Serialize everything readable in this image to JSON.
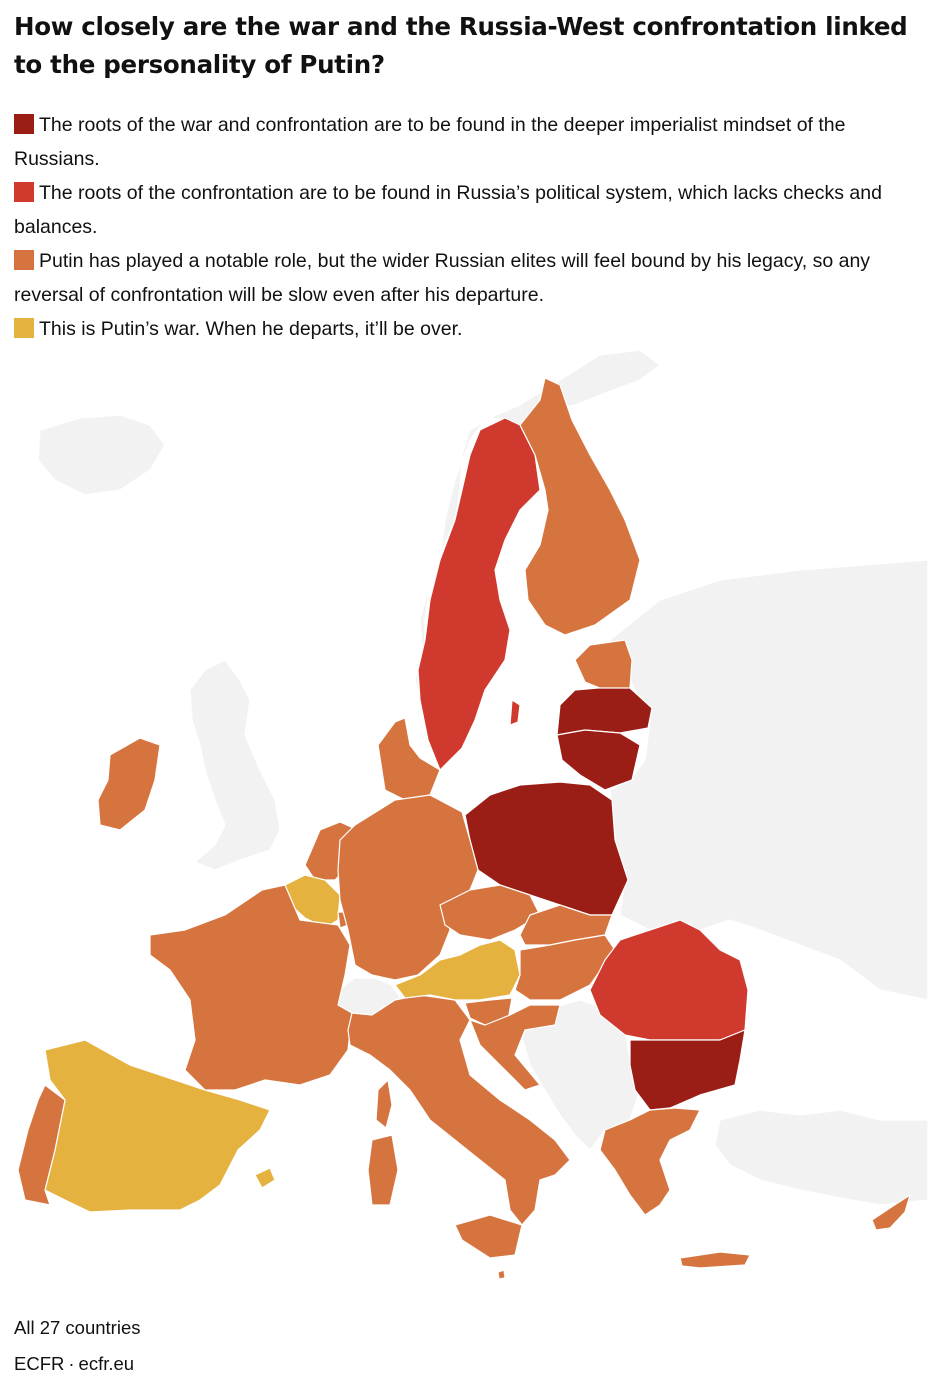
{
  "title": "How closely are the war and the Russia-West confrontation linked to the personality of Putin?",
  "legend": [
    {
      "id": "cat1",
      "color": "#9b1e16",
      "label": "The roots of the war and confrontation are to be found in the deeper imperialist mindset of the Russians."
    },
    {
      "id": "cat2",
      "color": "#d0392d",
      "label": "The roots of the confrontation are to be found in Russia’s political system, which lacks checks and balances."
    },
    {
      "id": "cat3",
      "color": "#d6743f",
      "label": "Putin has played a notable role, but the wider Russian elites will feel bound by his legacy, so any reversal of confrontation will be slow even after his departure."
    },
    {
      "id": "cat4",
      "color": "#e5b23f",
      "label": "This is Putin’s war. When he departs, it’ll be over."
    }
  ],
  "map": {
    "non_member_color": "#f2f2f2",
    "countries": [
      {
        "name": "Latvia",
        "category": "cat1"
      },
      {
        "name": "Lithuania",
        "category": "cat1"
      },
      {
        "name": "Poland",
        "category": "cat1"
      },
      {
        "name": "Bulgaria",
        "category": "cat1"
      },
      {
        "name": "Sweden",
        "category": "cat2"
      },
      {
        "name": "Romania",
        "category": "cat2"
      },
      {
        "name": "Finland",
        "category": "cat3"
      },
      {
        "name": "Estonia",
        "category": "cat3"
      },
      {
        "name": "Denmark",
        "category": "cat3"
      },
      {
        "name": "Ireland",
        "category": "cat3"
      },
      {
        "name": "Netherlands",
        "category": "cat3"
      },
      {
        "name": "Luxembourg",
        "category": "cat3"
      },
      {
        "name": "Germany",
        "category": "cat3"
      },
      {
        "name": "France",
        "category": "cat3"
      },
      {
        "name": "Portugal",
        "category": "cat3"
      },
      {
        "name": "Italy",
        "category": "cat3"
      },
      {
        "name": "Czechia",
        "category": "cat3"
      },
      {
        "name": "Slovakia",
        "category": "cat3"
      },
      {
        "name": "Hungary",
        "category": "cat3"
      },
      {
        "name": "Slovenia",
        "category": "cat3"
      },
      {
        "name": "Croatia",
        "category": "cat3"
      },
      {
        "name": "Greece",
        "category": "cat3"
      },
      {
        "name": "Cyprus",
        "category": "cat3"
      },
      {
        "name": "Malta",
        "category": "cat3"
      },
      {
        "name": "Belgium",
        "category": "cat4"
      },
      {
        "name": "Austria",
        "category": "cat4"
      },
      {
        "name": "Spain",
        "category": "cat4"
      }
    ]
  },
  "subtitle": "All 27 countries",
  "source": {
    "org": "ECFR",
    "separator": "·",
    "site": "ecfr.eu"
  }
}
